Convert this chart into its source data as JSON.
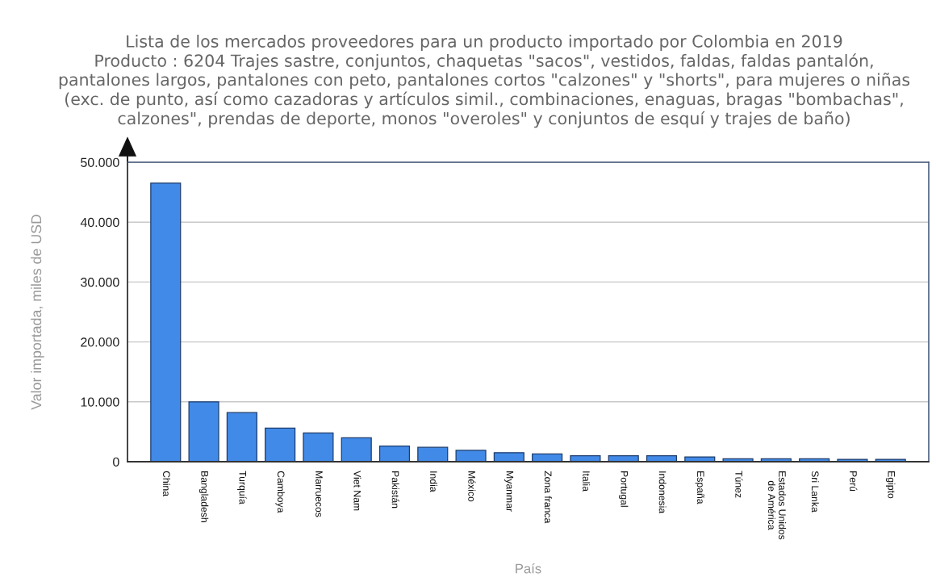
{
  "chart_data": {
    "type": "bar",
    "title": "Lista de los mercados proveedores para un producto importado por Colombia en 2019",
    "subtitle": "Producto : 6204 Trajes sastre, conjuntos, chaquetas \"sacos\", vestidos, faldas, faldas pantalón,\npantalones largos, pantalones con peto, pantalones cortos \"calzones\" y \"shorts\", para mujeres o niñas\n(exc. de punto, así como cazadoras y artículos simil., combinaciones, enaguas, bragas \"bombachas\",\ncalzones\", prendas de deporte, monos \"overoles\" y conjuntos de esquí y trajes de baño)",
    "xlabel": "País",
    "ylabel": "Valor importada, miles de USD",
    "categories": [
      "China",
      "Bangladesh",
      "Turquía",
      "Camboya",
      "Marruecos",
      "Viet Nam",
      "Pakistán",
      "India",
      "México",
      "Myanmar",
      "Zona franca",
      "Italia",
      "Portugal",
      "Indonesia",
      "España",
      "Túnez",
      "Estados Unidos\nde América",
      "Sri Lanka",
      "Perú",
      "Egipto"
    ],
    "values": [
      46500,
      10000,
      8200,
      5600,
      4800,
      4000,
      2600,
      2400,
      1900,
      1500,
      1300,
      1000,
      1000,
      1000,
      800,
      500,
      500,
      500,
      400,
      400
    ],
    "color": "#428ae8",
    "ylim": [
      0,
      50000
    ],
    "yticks": [
      0,
      {
        "value": 10000,
        "label": "10.000"
      },
      {
        "value": 20000,
        "label": "20.000"
      },
      {
        "value": 30000,
        "label": "30.000"
      },
      {
        "value": 40000,
        "label": "40.000"
      },
      {
        "value": 50000,
        "label": "50.000"
      }
    ],
    "grid": "y"
  }
}
